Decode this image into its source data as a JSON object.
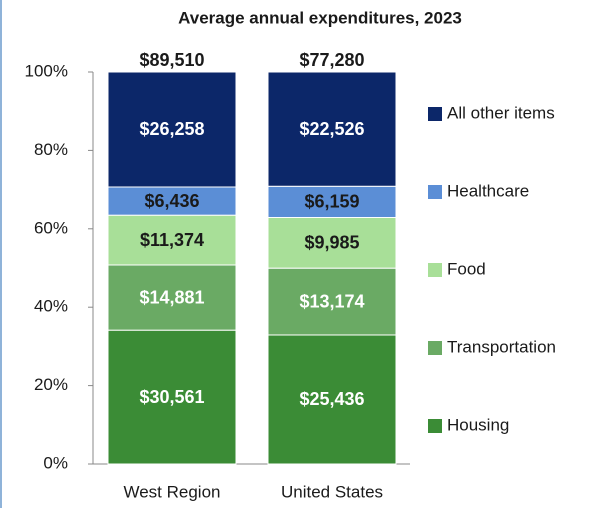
{
  "chart_data": {
    "type": "stacked_percent_bar",
    "title": "Average annual expenditures, 2023",
    "categories": [
      "West Region",
      "United States"
    ],
    "totals": [
      89510,
      77280
    ],
    "total_labels": [
      "$89,510",
      "$77,280"
    ],
    "series": [
      {
        "name": "Housing",
        "color": "#3b8c36",
        "values": [
          30561,
          25436
        ],
        "value_labels": [
          "$30,561",
          "$25,436"
        ],
        "label_color": "#ffffff"
      },
      {
        "name": "Transportation",
        "color": "#6aaa64",
        "values": [
          14881,
          13174
        ],
        "value_labels": [
          "$14,881",
          "$13,174"
        ],
        "label_color": "#ffffff"
      },
      {
        "name": "Food",
        "color": "#a8df98",
        "values": [
          11374,
          9985
        ],
        "value_labels": [
          "$11,374",
          "$9,985"
        ],
        "label_color": "#1a1a1a"
      },
      {
        "name": "Healthcare",
        "color": "#5b8ed6",
        "values": [
          6436,
          6159
        ],
        "value_labels": [
          "$6,436",
          "$6,159"
        ],
        "label_color": "#1a1a1a"
      },
      {
        "name": "All other items",
        "color": "#0c2769",
        "values": [
          26258,
          22526
        ],
        "value_labels": [
          "$26,258",
          "$22,526"
        ],
        "label_color": "#ffffff"
      }
    ],
    "ylim": [
      0,
      100
    ],
    "yticks": [
      {
        "value": 0,
        "label": "0%"
      },
      {
        "value": 20,
        "label": "20%"
      },
      {
        "value": 40,
        "label": "40%"
      },
      {
        "value": 60,
        "label": "60%"
      },
      {
        "value": 80,
        "label": "80%"
      },
      {
        "value": 100,
        "label": "100%"
      }
    ],
    "legend": "right"
  }
}
